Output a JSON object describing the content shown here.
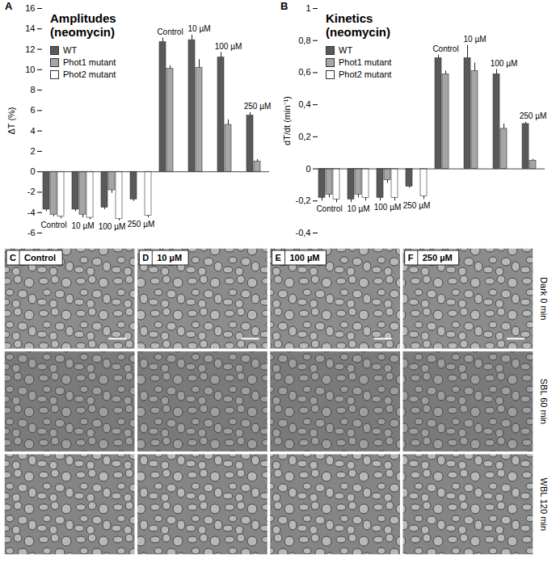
{
  "chart_data": [
    {
      "type": "bar",
      "panel": "A",
      "title": "Amplitudes (neomycin)",
      "y_label": "ΔT (%)",
      "categories": [
        "Control",
        "10 µM",
        "100 µM",
        "250 µM",
        "Control",
        "10 µM",
        "100 µM",
        "250 µM"
      ],
      "series": [
        {
          "name": "WT",
          "color": "#595959",
          "values": [
            -3.7,
            -3.7,
            -3.5,
            -2.7,
            12.7,
            12.9,
            11.2,
            5.5
          ],
          "errors": [
            0.2,
            0.2,
            0.2,
            0.2,
            0.4,
            0.5,
            0.5,
            0.3
          ]
        },
        {
          "name": "Phot1 mutant",
          "color": "#a6a6a6",
          "values": [
            -4.2,
            -4.2,
            -1.8,
            null,
            10.1,
            10.2,
            4.6,
            1.0
          ],
          "errors": [
            0.2,
            0.3,
            0.3,
            null,
            0.3,
            0.8,
            0.5,
            0.2
          ]
        },
        {
          "name": "Phot2 mutant",
          "color": "#ffffff",
          "values": [
            -4.4,
            -4.5,
            -4.6,
            -4.3,
            null,
            null,
            null,
            null
          ],
          "errors": [
            0.2,
            0.2,
            0.2,
            0.2,
            null,
            null,
            null,
            null
          ]
        }
      ],
      "ylim": [
        -6,
        16
      ],
      "yticks": [
        -6,
        -4,
        -2,
        0,
        2,
        4,
        6,
        8,
        10,
        12,
        14,
        16
      ],
      "tick_labels": "y",
      "legend": "top-left"
    },
    {
      "type": "bar",
      "panel": "B",
      "title": "Kinetics (neomycin)",
      "y_label": "dT/dt (min⁻¹)",
      "categories": [
        "Control",
        "10 µM",
        "100 µM",
        "250 µM",
        "Control",
        "10 µM",
        "100 µM",
        "250 µM"
      ],
      "series": [
        {
          "name": "WT",
          "color": "#595959",
          "values": [
            -0.18,
            -0.19,
            -0.18,
            -0.11,
            0.69,
            0.69,
            0.59,
            0.28
          ],
          "errors": [
            0.02,
            0.02,
            0.02,
            0.01,
            0.02,
            0.08,
            0.03,
            0.01
          ]
        },
        {
          "name": "Phot1 mutant",
          "color": "#a6a6a6",
          "values": [
            -0.16,
            -0.16,
            -0.07,
            null,
            0.59,
            0.61,
            0.25,
            0.05
          ],
          "errors": [
            0.02,
            0.02,
            0.02,
            null,
            0.02,
            0.05,
            0.03,
            0.01
          ]
        },
        {
          "name": "Phot2 mutant",
          "color": "#ffffff",
          "values": [
            -0.19,
            -0.18,
            -0.18,
            -0.17,
            null,
            null,
            null,
            null
          ],
          "errors": [
            0.02,
            0.02,
            0.02,
            0.02,
            null,
            null,
            null,
            null
          ]
        }
      ],
      "ylim": [
        -0.4,
        1
      ],
      "yticks": [
        {
          "value": -0.4,
          "label": "-0,4"
        },
        {
          "value": -0.2,
          "label": "-0,2"
        },
        0,
        {
          "value": 0.2,
          "label": "0,2"
        },
        {
          "value": 0.4,
          "label": "0,4"
        },
        {
          "value": 0.6,
          "label": "0,6"
        },
        {
          "value": 0.8,
          "label": "0,8"
        },
        1
      ],
      "tick_labels": "y",
      "legend": "top-left"
    }
  ],
  "images": {
    "panels": [
      {
        "letter": "C",
        "label": "Control"
      },
      {
        "letter": "D",
        "label": "10 µM"
      },
      {
        "letter": "E",
        "label": "100 µM"
      },
      {
        "letter": "F",
        "label": "250 µM"
      }
    ],
    "rows": [
      "Dark 0 min",
      "SBL 60 min",
      "WBL 120 min"
    ]
  }
}
